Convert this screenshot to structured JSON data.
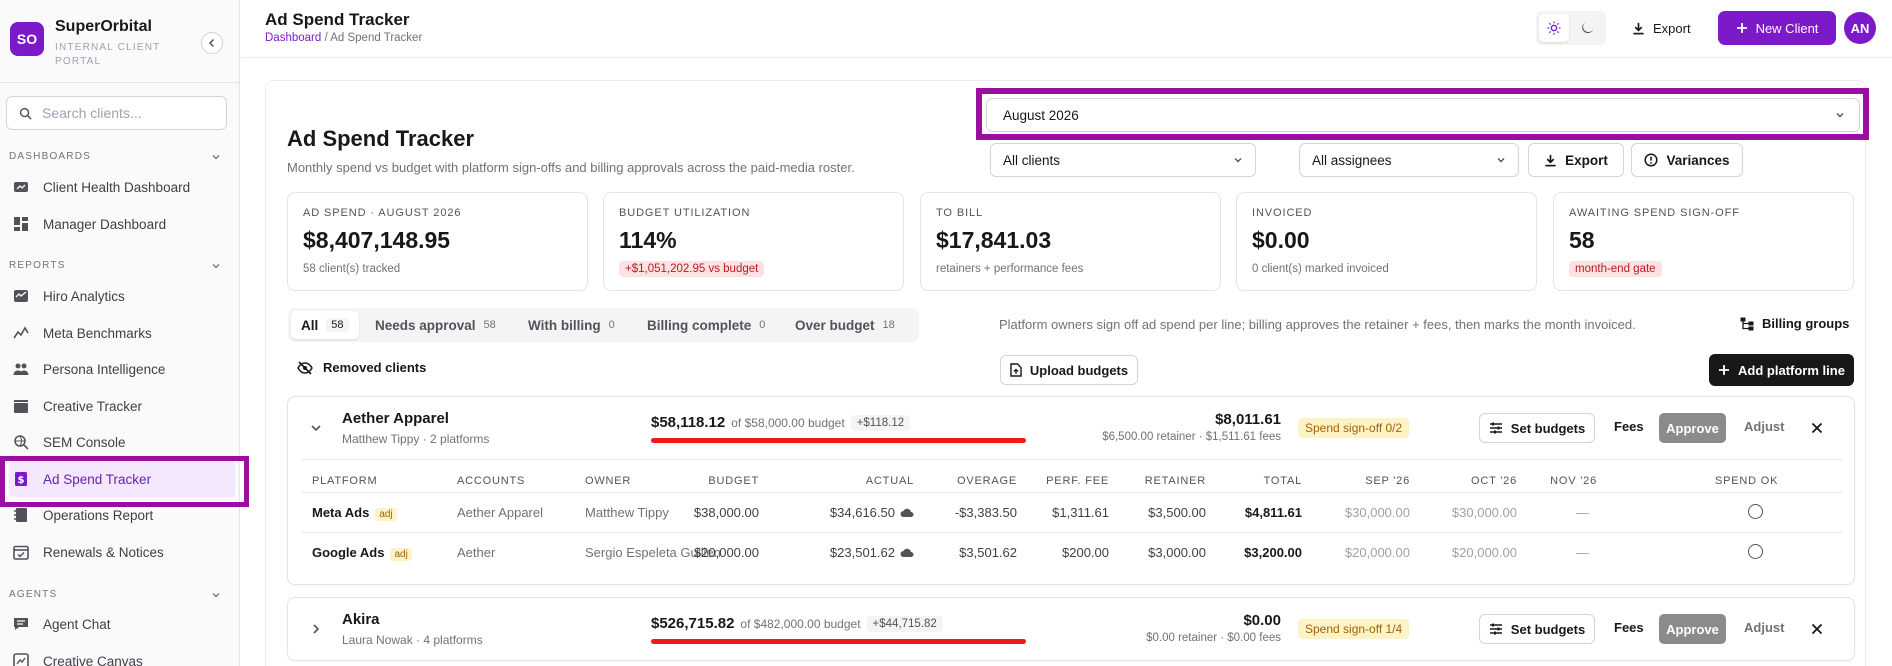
{
  "sidebar": {
    "brand_initials": "SO",
    "brand_name": "SuperOrbital",
    "brand_subtitle": "INTERNAL CLIENT PORTAL",
    "search_placeholder": "Search clients...",
    "sections": [
      {
        "title": "DASHBOARDS",
        "items": [
          {
            "label": "Client Health Dashboard",
            "icon": "gauge-icon"
          },
          {
            "label": "Manager Dashboard",
            "icon": "layout-grid-icon"
          }
        ]
      },
      {
        "title": "REPORTS",
        "items": [
          {
            "label": "Hiro Analytics",
            "icon": "inbox-chart-icon"
          },
          {
            "label": "Meta Benchmarks",
            "icon": "trend-line-icon"
          },
          {
            "label": "Persona Intelligence",
            "icon": "users-icon"
          },
          {
            "label": "Creative Tracker",
            "icon": "clapperboard-icon"
          },
          {
            "label": "SEM Console",
            "icon": "search-globe-icon"
          },
          {
            "label": "Ad Spend Tracker",
            "icon": "dollar-doc-icon",
            "active": true
          },
          {
            "label": "Operations Report",
            "icon": "notebook-icon"
          },
          {
            "label": "Renewals & Notices",
            "icon": "calendar-check-icon"
          }
        ]
      },
      {
        "title": "AGENTS",
        "items": [
          {
            "label": "Agent Chat",
            "icon": "chat-icon"
          },
          {
            "label": "Creative Canvas",
            "icon": "canvas-icon"
          }
        ]
      }
    ]
  },
  "header": {
    "title": "Ad Spend Tracker",
    "breadcrumb_root": "Dashboard",
    "breadcrumb_sep": " / ",
    "breadcrumb_current": "Ad Spend Tracker",
    "export_label": "Export",
    "new_client_label": "New Client",
    "avatar_initials": "AN"
  },
  "page": {
    "title": "Ad Spend Tracker",
    "subtitle": "Monthly spend vs budget with platform sign-offs and billing approvals across the paid-media roster.",
    "month": "August 2026",
    "client_filter": "All clients",
    "assignee_filter": "All assignees",
    "export_label": "Export",
    "variances_label": "Variances"
  },
  "kpis": [
    {
      "label": "AD SPEND · AUGUST 2026",
      "value": "$8,407,148.95",
      "note": "58 client(s) tracked"
    },
    {
      "label": "BUDGET UTILIZATION",
      "value": "114%",
      "pill": "+$1,051,202.95 vs budget"
    },
    {
      "label": "TO BILL",
      "value": "$17,841.03",
      "note": "retainers + performance fees"
    },
    {
      "label": "INVOICED",
      "value": "$0.00",
      "note": "0 client(s) marked invoiced"
    },
    {
      "label": "AWAITING SPEND SIGN-OFF",
      "value": "58",
      "pill": "month-end gate"
    }
  ],
  "tabs": [
    {
      "label": "All",
      "count": "58",
      "active": true
    },
    {
      "label": "Needs approval",
      "count": "58"
    },
    {
      "label": "With billing",
      "count": "0"
    },
    {
      "label": "Billing complete",
      "count": "0"
    },
    {
      "label": "Over budget",
      "count": "18"
    }
  ],
  "help_text": "Platform owners sign off ad spend per line; billing approves the retainer + fees, then marks the month invoiced.",
  "billing_groups_label": "Billing groups",
  "removed_clients_label": "Removed clients",
  "upload_budgets_label": "Upload budgets",
  "add_platform_line_label": "Add platform line",
  "actions": {
    "set_budgets": "Set budgets",
    "fees": "Fees",
    "approve": "Approve",
    "adjust": "Adjust"
  },
  "table_headers": [
    "PLATFORM",
    "ACCOUNTS",
    "OWNER",
    "BUDGET",
    "ACTUAL",
    "OVERAGE",
    "PERF. FEE",
    "RETAINER",
    "TOTAL",
    "SEP '26",
    "OCT '26",
    "NOV '26",
    "SPEND OK"
  ],
  "clients": [
    {
      "name": "Aether Apparel",
      "meta": "Matthew Tippy · 2 platforms",
      "spend": "$58,118.12",
      "budget_text": "of $58,000.00 budget",
      "diff": "+$118.12",
      "utilization_pct": 100,
      "bill_total": "$8,011.61",
      "bill_sub": "$6,500.00 retainer · $1,511.61 fees",
      "signoff": "Spend sign-off 0/2",
      "expanded": true,
      "rows": [
        {
          "platform": "Meta Ads",
          "badge": "adj",
          "account": "Aether Apparel",
          "owner": "Matthew Tippy",
          "budget": "$38,000.00",
          "actual": "$34,616.50",
          "overage": "-$3,383.50",
          "perf_fee": "$1,311.61",
          "retainer": "$3,500.00",
          "total": "$4,811.61",
          "sep": "$30,000.00",
          "oct": "$30,000.00",
          "nov": "—"
        },
        {
          "platform": "Google Ads",
          "badge": "adj",
          "account": "Aether",
          "owner": "Sergio Espeleta Guillen",
          "budget": "$20,000.00",
          "actual": "$23,501.62",
          "overage": "$3,501.62",
          "perf_fee": "$200.00",
          "retainer": "$3,000.00",
          "total": "$3,200.00",
          "sep": "$20,000.00",
          "oct": "$20,000.00",
          "nov": "—"
        }
      ]
    },
    {
      "name": "Akira",
      "meta": "Laura Nowak · 4 platforms",
      "spend": "$526,715.82",
      "budget_text": "of $482,000.00 budget",
      "diff": "+$44,715.82",
      "utilization_pct": 100,
      "bill_total": "$0.00",
      "bill_sub": "$0.00 retainer · $0.00 fees",
      "signoff": "Spend sign-off 1/4",
      "expanded": false
    }
  ]
}
